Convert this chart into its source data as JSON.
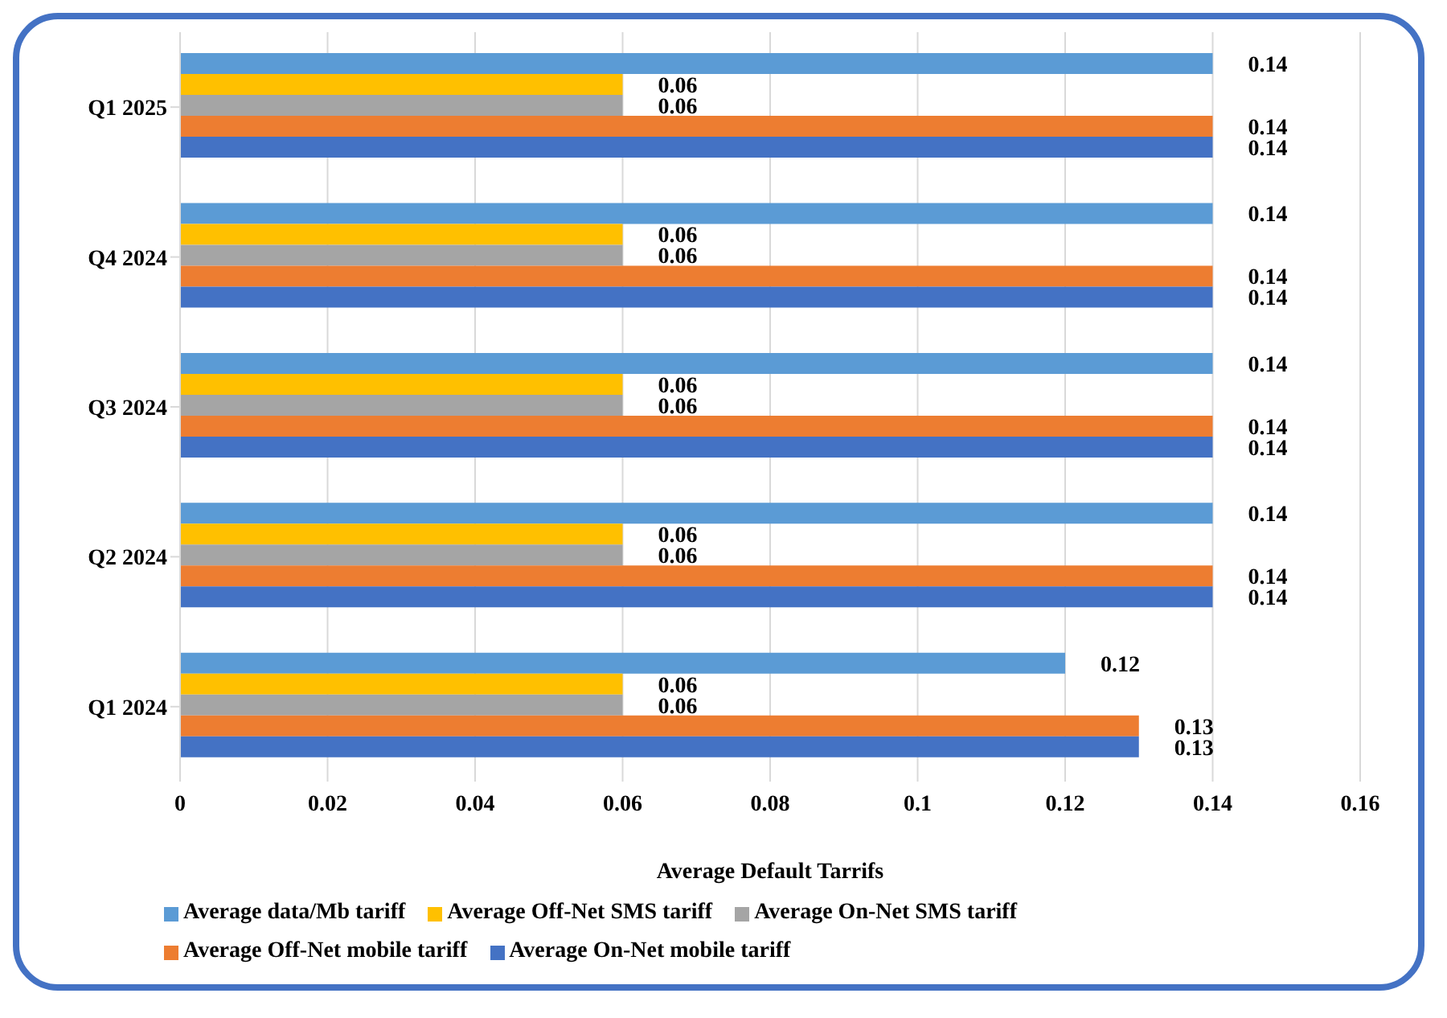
{
  "chart_data": {
    "type": "bar",
    "orientation": "horizontal",
    "xlabel": "Average Default Tarrifs",
    "categories": [
      "Q1 2025",
      "Q4 2024",
      "Q3 2024",
      "Q2 2024",
      "Q1 2024"
    ],
    "series": [
      {
        "name": "Average data/Mb tariff",
        "color": "#5b9bd5",
        "values": [
          0.14,
          0.14,
          0.14,
          0.14,
          0.12
        ]
      },
      {
        "name": "Average Off-Net SMS tariff",
        "color": "#ffc000",
        "values": [
          0.06,
          0.06,
          0.06,
          0.06,
          0.06
        ]
      },
      {
        "name": "Average On-Net SMS tariff",
        "color": "#a5a5a5",
        "values": [
          0.06,
          0.06,
          0.06,
          0.06,
          0.06
        ]
      },
      {
        "name": "Average Off-Net mobile tariff",
        "color": "#ed7d31",
        "values": [
          0.14,
          0.14,
          0.14,
          0.14,
          0.13
        ]
      },
      {
        "name": "Average On-Net mobile tariff",
        "color": "#4472c4",
        "values": [
          0.14,
          0.14,
          0.14,
          0.14,
          0.13
        ]
      }
    ],
    "xlim": [
      0,
      0.16
    ],
    "xticks": [
      0,
      0.02,
      0.04,
      0.06,
      0.08,
      0.1,
      0.12,
      0.14,
      0.16
    ],
    "grid": "x",
    "legend": "bottom",
    "data_labels": true
  }
}
